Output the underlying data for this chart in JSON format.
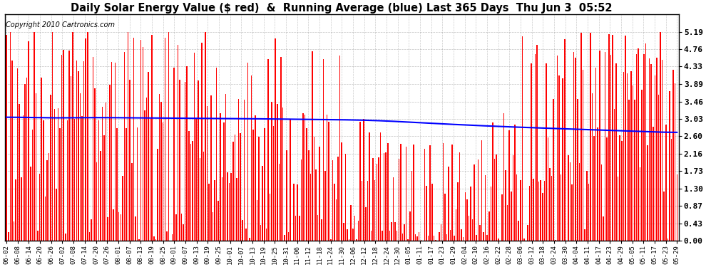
{
  "title": "Daily Solar Energy Value ($ red)  &  Running Average (blue) Last 365 Days  Thu Jun 3  05:52",
  "copyright": "Copyright 2010 Cartronics.com",
  "yticks": [
    0.0,
    0.43,
    0.87,
    1.3,
    1.73,
    2.16,
    2.6,
    3.03,
    3.46,
    3.89,
    4.33,
    4.76,
    5.19
  ],
  "ylim": [
    0.0,
    5.62
  ],
  "bar_color": "#ff0000",
  "avg_color": "#0000ff",
  "bg_color": "#ffffff",
  "plot_bg_color": "#ffffff",
  "grid_color": "#999999",
  "title_fontsize": 10.5,
  "copyright_fontsize": 7,
  "xtick_labels": [
    "06-02",
    "06-08",
    "06-14",
    "06-20",
    "06-26",
    "07-02",
    "07-08",
    "07-14",
    "07-20",
    "07-26",
    "08-01",
    "08-07",
    "08-13",
    "08-19",
    "08-25",
    "09-01",
    "09-07",
    "09-13",
    "09-19",
    "09-25",
    "10-01",
    "10-07",
    "10-13",
    "10-19",
    "10-25",
    "10-31",
    "11-06",
    "11-12",
    "11-18",
    "11-24",
    "11-30",
    "12-06",
    "12-12",
    "12-18",
    "12-24",
    "12-30",
    "01-05",
    "01-11",
    "01-17",
    "01-23",
    "01-29",
    "02-04",
    "02-10",
    "02-16",
    "02-22",
    "02-28",
    "03-06",
    "03-12",
    "03-18",
    "03-24",
    "03-30",
    "04-04",
    "04-11",
    "04-17",
    "04-23",
    "04-29",
    "05-05",
    "05-11",
    "05-17",
    "05-23",
    "05-29"
  ]
}
